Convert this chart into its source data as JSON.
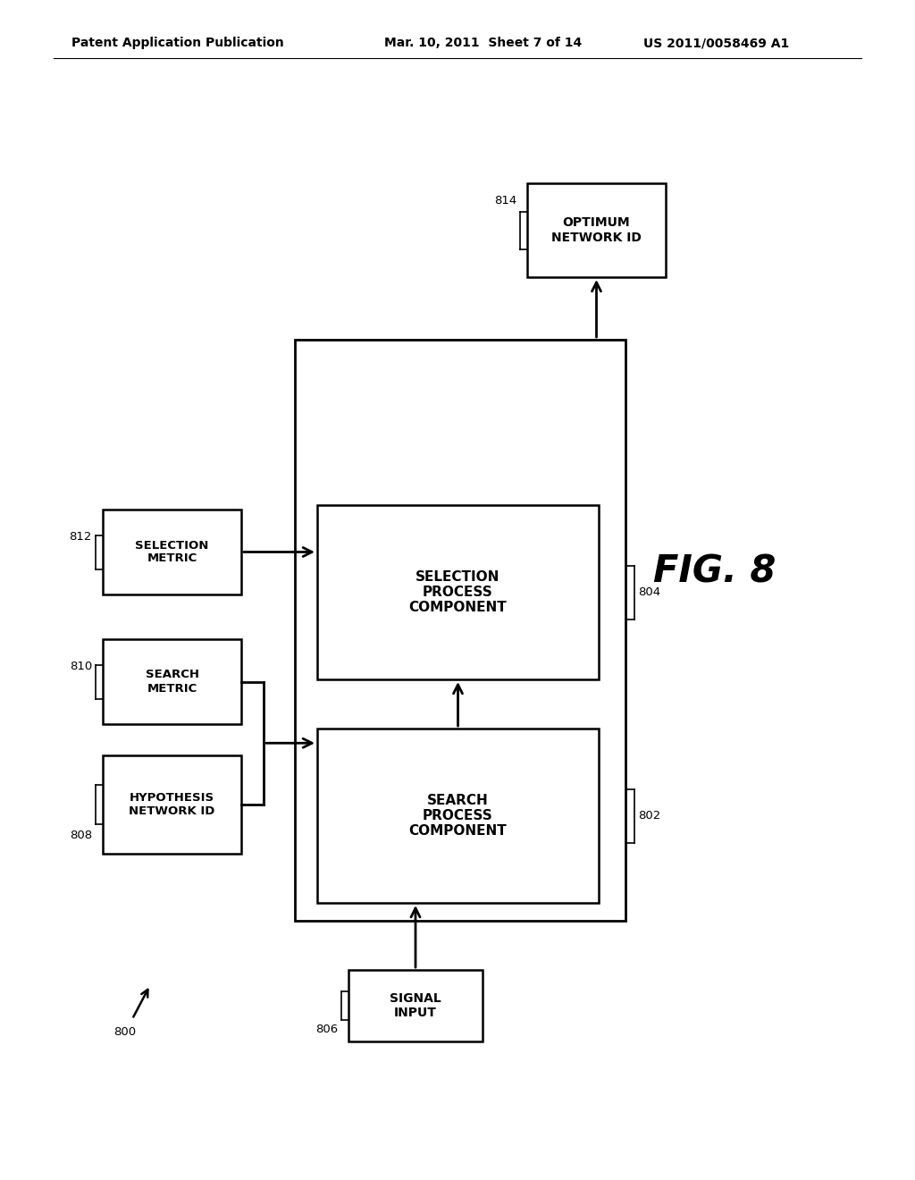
{
  "bg_color": "#ffffff",
  "header_left": "Patent Application Publication",
  "header_mid": "Mar. 10, 2011  Sheet 7 of 14",
  "header_right": "US 2011/0058469 A1",
  "fig_label": "FIG. 8",
  "ref_800": "800",
  "ref_802": "802",
  "ref_804": "804",
  "ref_806": "806",
  "ref_808": "808",
  "ref_810": "810",
  "ref_812": "812",
  "ref_814": "814"
}
